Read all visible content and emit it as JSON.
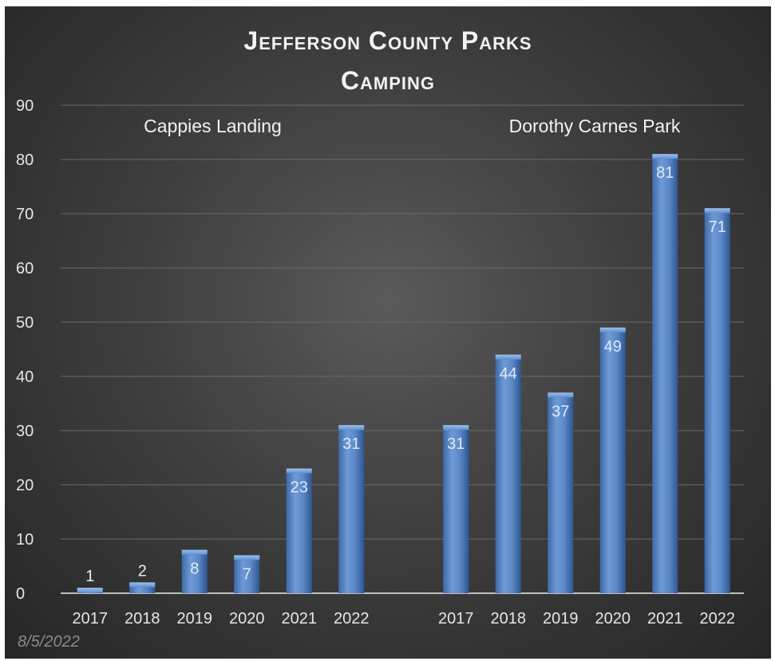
{
  "chart_data": {
    "type": "bar",
    "title": [
      "Jefferson County Parks",
      "Camping"
    ],
    "ylim": [
      0,
      90
    ],
    "y_ticks": [
      0,
      10,
      20,
      30,
      40,
      50,
      60,
      70,
      80,
      90
    ],
    "grid": true,
    "groups": [
      {
        "name": "Cappies Landing",
        "categories": [
          "2017",
          "2018",
          "2019",
          "2020",
          "2021",
          "2022"
        ],
        "values": [
          1,
          2,
          8,
          7,
          23,
          31
        ]
      },
      {
        "name": "Dorothy Carnes Park",
        "categories": [
          "2017",
          "2018",
          "2019",
          "2020",
          "2021",
          "2022"
        ],
        "values": [
          31,
          44,
          37,
          49,
          81,
          71
        ]
      }
    ],
    "bar_color": "#4f81bd"
  },
  "footer": {
    "date": "8/5/2022"
  }
}
